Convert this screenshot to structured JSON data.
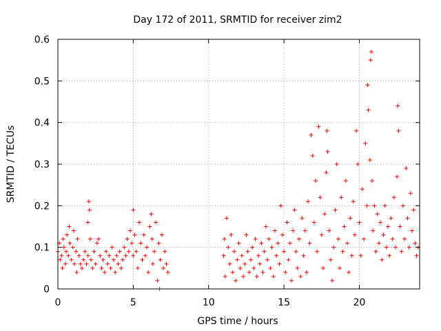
{
  "chart_data": {
    "type": "scatter",
    "title": "Day 172 of 2011, SRMTID for receiver zim2",
    "xlabel": "GPS time / hours",
    "ylabel": "SRMTID / TECUs",
    "xlim": [
      0,
      24
    ],
    "ylim": [
      0,
      0.6
    ],
    "x_ticks": [
      0,
      5,
      10,
      15,
      20
    ],
    "x_tick_labels": [
      "0",
      "5",
      "10",
      "15",
      "20"
    ],
    "y_ticks": [
      0,
      0.1,
      0.2,
      0.3,
      0.4,
      0.5,
      0.6
    ],
    "y_tick_labels": [
      "0",
      "0.1",
      "0.2",
      "0.3",
      "0.4",
      "0.5",
      "0.6"
    ],
    "grid": true,
    "marker": "+",
    "color": "#ff0000",
    "series": [
      {
        "name": "SRMTID",
        "points": [
          [
            0.0,
            0.09
          ],
          [
            0.1,
            0.11
          ],
          [
            0.15,
            0.07
          ],
          [
            0.25,
            0.08
          ],
          [
            0.3,
            0.05
          ],
          [
            0.35,
            0.12
          ],
          [
            0.4,
            0.1
          ],
          [
            0.5,
            0.06
          ],
          [
            0.55,
            0.09
          ],
          [
            0.6,
            0.13
          ],
          [
            0.7,
            0.08
          ],
          [
            0.75,
            0.15
          ],
          [
            0.8,
            0.11
          ],
          [
            0.9,
            0.07
          ],
          [
            1.0,
            0.1
          ],
          [
            1.05,
            0.14
          ],
          [
            1.1,
            0.06
          ],
          [
            1.2,
            0.09
          ],
          [
            1.25,
            0.04
          ],
          [
            1.3,
            0.12
          ],
          [
            1.4,
            0.08
          ],
          [
            1.5,
            0.06
          ],
          [
            1.6,
            0.05
          ],
          [
            1.7,
            0.07
          ],
          [
            1.8,
            0.09
          ],
          [
            1.9,
            0.06
          ],
          [
            2.0,
            0.08
          ],
          [
            2.0,
            0.16
          ],
          [
            2.05,
            0.21
          ],
          [
            2.1,
            0.19
          ],
          [
            2.15,
            0.12
          ],
          [
            2.2,
            0.07
          ],
          [
            2.3,
            0.05
          ],
          [
            2.4,
            0.09
          ],
          [
            2.5,
            0.06
          ],
          [
            2.6,
            0.11
          ],
          [
            2.7,
            0.12
          ],
          [
            2.8,
            0.08
          ],
          [
            2.9,
            0.05
          ],
          [
            3.0,
            0.07
          ],
          [
            3.1,
            0.04
          ],
          [
            3.2,
            0.09
          ],
          [
            3.3,
            0.06
          ],
          [
            3.4,
            0.08
          ],
          [
            3.5,
            0.05
          ],
          [
            3.6,
            0.1
          ],
          [
            3.7,
            0.07
          ],
          [
            3.8,
            0.04
          ],
          [
            3.9,
            0.08
          ],
          [
            4.0,
            0.06
          ],
          [
            4.1,
            0.09
          ],
          [
            4.2,
            0.05
          ],
          [
            4.3,
            0.07
          ],
          [
            4.4,
            0.1
          ],
          [
            4.5,
            0.08
          ],
          [
            4.6,
            0.12
          ],
          [
            4.7,
            0.09
          ],
          [
            4.8,
            0.14
          ],
          [
            4.9,
            0.11
          ],
          [
            5.0,
            0.08
          ],
          [
            5.0,
            0.19
          ],
          [
            5.1,
            0.13
          ],
          [
            5.2,
            0.09
          ],
          [
            5.3,
            0.05
          ],
          [
            5.4,
            0.16
          ],
          [
            5.5,
            0.11
          ],
          [
            5.6,
            0.07
          ],
          [
            5.7,
            0.13
          ],
          [
            5.8,
            0.08
          ],
          [
            5.9,
            0.1
          ],
          [
            6.0,
            0.04
          ],
          [
            6.1,
            0.15
          ],
          [
            6.2,
            0.18
          ],
          [
            6.25,
            0.12
          ],
          [
            6.3,
            0.06
          ],
          [
            6.4,
            0.09
          ],
          [
            6.5,
            0.16
          ],
          [
            6.6,
            0.02
          ],
          [
            6.7,
            0.11
          ],
          [
            6.75,
            0.0
          ],
          [
            6.8,
            0.07
          ],
          [
            6.9,
            0.13
          ],
          [
            7.0,
            0.05
          ],
          [
            7.1,
            0.09
          ],
          [
            7.2,
            0.06
          ],
          [
            7.3,
            0.04
          ],
          [
            11.0,
            0.08
          ],
          [
            11.05,
            0.12
          ],
          [
            11.1,
            0.03
          ],
          [
            11.2,
            0.17
          ],
          [
            11.3,
            0.1
          ],
          [
            11.4,
            0.06
          ],
          [
            11.5,
            0.13
          ],
          [
            11.6,
            0.04
          ],
          [
            11.7,
            0.09
          ],
          [
            11.8,
            0.02
          ],
          [
            11.9,
            0.07
          ],
          [
            12.0,
            0.11
          ],
          [
            12.1,
            0.05
          ],
          [
            12.2,
            0.08
          ],
          [
            12.3,
            0.03
          ],
          [
            12.4,
            0.06
          ],
          [
            12.5,
            0.13
          ],
          [
            12.6,
            0.09
          ],
          [
            12.7,
            0.04
          ],
          [
            12.8,
            0.07
          ],
          [
            12.9,
            0.1
          ],
          [
            13.0,
            0.05
          ],
          [
            13.1,
            0.12
          ],
          [
            13.2,
            0.03
          ],
          [
            13.3,
            0.08
          ],
          [
            13.4,
            0.06
          ],
          [
            13.5,
            0.11
          ],
          [
            13.6,
            0.04
          ],
          [
            13.7,
            0.09
          ],
          [
            13.8,
            0.15
          ],
          [
            13.9,
            0.07
          ],
          [
            14.0,
            0.12
          ],
          [
            14.1,
            0.05
          ],
          [
            14.2,
            0.1
          ],
          [
            14.3,
            0.03
          ],
          [
            14.4,
            0.14
          ],
          [
            14.5,
            0.08
          ],
          [
            14.6,
            0.11
          ],
          [
            14.7,
            0.06
          ],
          [
            14.8,
            0.2
          ],
          [
            14.9,
            0.13
          ],
          [
            15.0,
            0.09
          ],
          [
            15.1,
            0.04
          ],
          [
            15.2,
            0.16
          ],
          [
            15.3,
            0.07
          ],
          [
            15.4,
            0.11
          ],
          [
            15.5,
            0.02
          ],
          [
            15.6,
            0.14
          ],
          [
            15.7,
            0.19
          ],
          [
            15.8,
            0.09
          ],
          [
            15.9,
            0.05
          ],
          [
            16.0,
            0.12
          ],
          [
            16.1,
            0.03
          ],
          [
            16.2,
            0.17
          ],
          [
            16.3,
            0.08
          ],
          [
            16.4,
            0.14
          ],
          [
            16.5,
            0.04
          ],
          [
            16.6,
            0.21
          ],
          [
            16.7,
            0.11
          ],
          [
            16.8,
            0.37
          ],
          [
            16.9,
            0.32
          ],
          [
            17.0,
            0.16
          ],
          [
            17.1,
            0.26
          ],
          [
            17.2,
            0.09
          ],
          [
            17.3,
            0.39
          ],
          [
            17.4,
            0.22
          ],
          [
            17.5,
            0.13
          ],
          [
            17.6,
            0.05
          ],
          [
            17.7,
            0.18
          ],
          [
            17.8,
            0.28
          ],
          [
            17.85,
            0.38
          ],
          [
            17.9,
            0.33
          ],
          [
            18.0,
            0.14
          ],
          [
            18.1,
            0.07
          ],
          [
            18.2,
            0.02
          ],
          [
            18.3,
            0.1
          ],
          [
            18.4,
            0.19
          ],
          [
            18.5,
            0.3
          ],
          [
            18.6,
            0.12
          ],
          [
            18.7,
            0.05
          ],
          [
            18.8,
            0.22
          ],
          [
            18.9,
            0.09
          ],
          [
            19.0,
            0.15
          ],
          [
            19.1,
            0.26
          ],
          [
            19.2,
            0.11
          ],
          [
            19.3,
            0.04
          ],
          [
            19.4,
            0.17
          ],
          [
            19.5,
            0.08
          ],
          [
            19.6,
            0.21
          ],
          [
            19.7,
            0.13
          ],
          [
            19.8,
            0.38
          ],
          [
            19.9,
            0.3
          ],
          [
            20.0,
            0.16
          ],
          [
            20.1,
            0.08
          ],
          [
            20.2,
            0.24
          ],
          [
            20.3,
            0.12
          ],
          [
            20.4,
            0.35
          ],
          [
            20.5,
            0.2
          ],
          [
            20.55,
            0.49
          ],
          [
            20.6,
            0.43
          ],
          [
            20.7,
            0.31
          ],
          [
            20.75,
            0.55
          ],
          [
            20.8,
            0.57
          ],
          [
            20.85,
            0.26
          ],
          [
            20.9,
            0.14
          ],
          [
            21.0,
            0.2
          ],
          [
            21.1,
            0.09
          ],
          [
            21.2,
            0.18
          ],
          [
            21.3,
            0.11
          ],
          [
            21.4,
            0.16
          ],
          [
            21.5,
            0.07
          ],
          [
            21.6,
            0.13
          ],
          [
            21.7,
            0.2
          ],
          [
            21.8,
            0.1
          ],
          [
            21.9,
            0.15
          ],
          [
            22.0,
            0.08
          ],
          [
            22.1,
            0.17
          ],
          [
            22.2,
            0.12
          ],
          [
            22.3,
            0.22
          ],
          [
            22.4,
            0.1
          ],
          [
            22.5,
            0.27
          ],
          [
            22.55,
            0.44
          ],
          [
            22.6,
            0.38
          ],
          [
            22.7,
            0.15
          ],
          [
            22.8,
            0.09
          ],
          [
            22.9,
            0.2
          ],
          [
            23.0,
            0.12
          ],
          [
            23.1,
            0.29
          ],
          [
            23.2,
            0.17
          ],
          [
            23.3,
            0.1
          ],
          [
            23.4,
            0.23
          ],
          [
            23.5,
            0.14
          ],
          [
            23.6,
            0.19
          ],
          [
            23.7,
            0.11
          ],
          [
            23.8,
            0.08
          ],
          [
            23.9,
            0.1
          ]
        ]
      }
    ]
  }
}
